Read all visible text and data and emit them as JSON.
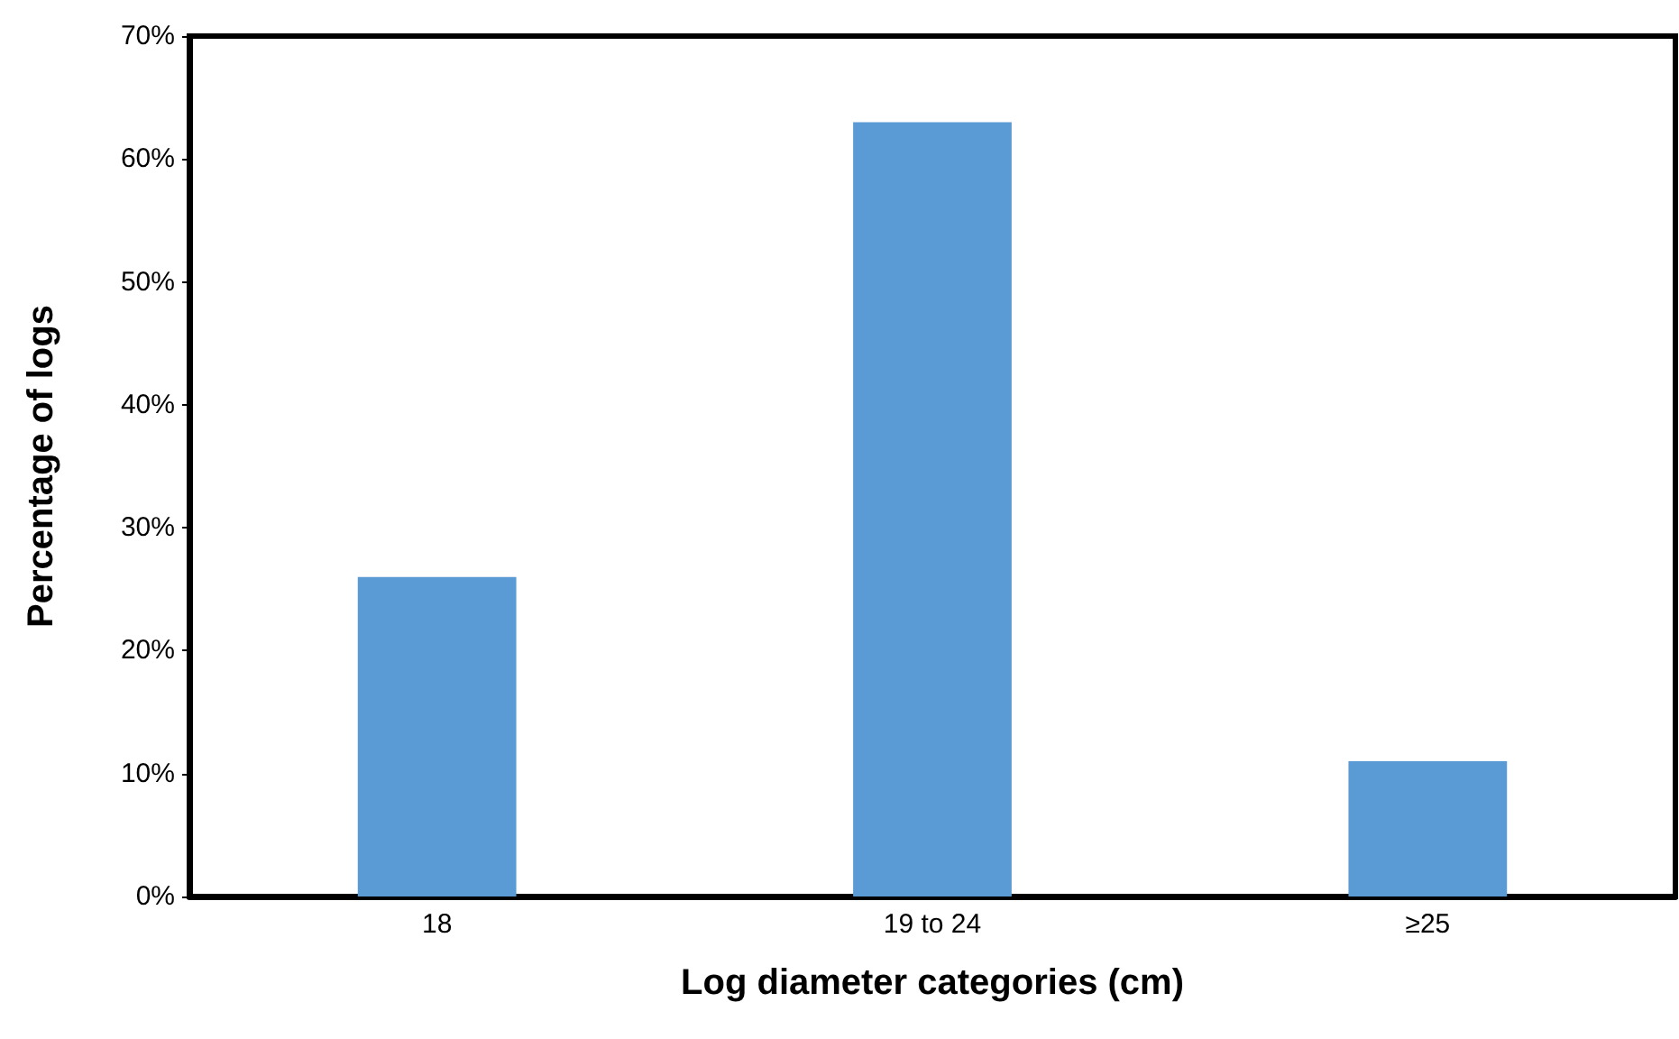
{
  "chart_data": {
    "type": "bar",
    "xlabel": "Log diameter categories (cm)",
    "ylabel": "Percentage of logs",
    "categories": [
      "18",
      "19 to 24",
      "≥25"
    ],
    "values": [
      26,
      63,
      11
    ],
    "color": "#5b9bd5",
    "ylim": [
      0,
      70
    ],
    "yticks": [
      {
        "value": 0,
        "label": "0%"
      },
      {
        "value": 10,
        "label": "10%"
      },
      {
        "value": 20,
        "label": "20%"
      },
      {
        "value": 30,
        "label": "30%"
      },
      {
        "value": 40,
        "label": "40%"
      },
      {
        "value": 50,
        "label": "50%"
      },
      {
        "value": 60,
        "label": "60%"
      },
      {
        "value": 70,
        "label": "70%"
      }
    ],
    "data_labels": false
  }
}
